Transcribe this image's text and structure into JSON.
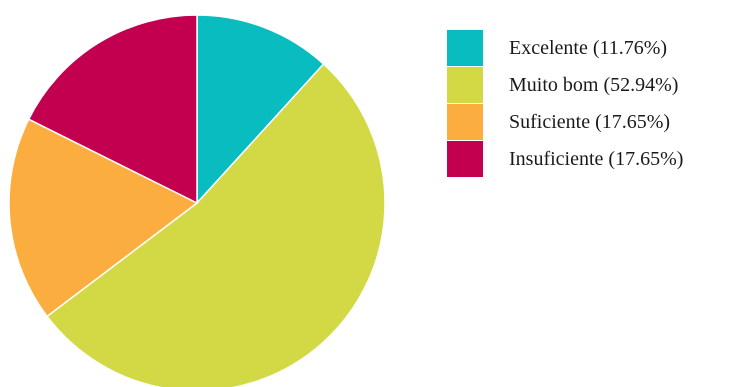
{
  "chart_data": {
    "type": "pie",
    "title": "",
    "categories": [
      "Excelente",
      "Muito bom",
      "Suficiente",
      "Insuficiente"
    ],
    "values": [
      11.76,
      52.94,
      17.65,
      17.65
    ],
    "legend_labels": [
      "Excelente (11.76%)",
      "Muito bom (52.94%)",
      "Suficiente (17.65%)",
      "Insuficiente (17.65%)"
    ],
    "colors": [
      "#08bcc0",
      "#d3d944",
      "#fbae3f",
      "#c2004f"
    ],
    "start": "12 o'clock",
    "direction": "clockwise",
    "legend_position": "right"
  }
}
